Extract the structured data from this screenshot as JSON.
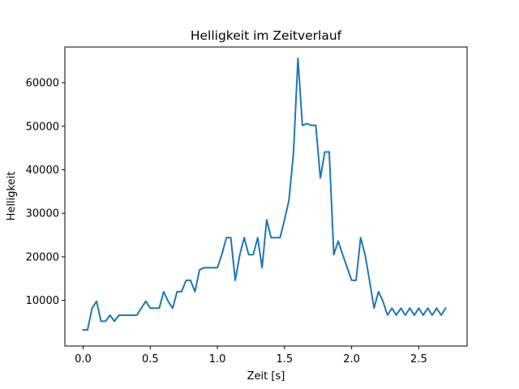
{
  "chart_data": {
    "type": "line",
    "title": "Helligkeit im Zeitverlauf",
    "xlabel": "Zeit [s]",
    "ylabel": "Helligkeit",
    "xlim": [
      -0.136,
      2.86
    ],
    "ylim": [
      -500,
      68200
    ],
    "grid": false,
    "legend": "none",
    "xticks": [
      0.0,
      0.5,
      1.0,
      1.5,
      2.0,
      2.5
    ],
    "xtick_labels": [
      "0.0",
      "0.5",
      "1.0",
      "1.5",
      "2.0",
      "2.5"
    ],
    "yticks": [
      10000,
      20000,
      30000,
      40000,
      50000,
      60000
    ],
    "ytick_labels": [
      "10000",
      "20000",
      "30000",
      "40000",
      "50000",
      "60000"
    ],
    "series": [
      {
        "color": "#1f77b4",
        "x": [
          0.0,
          0.033,
          0.067,
          0.1,
          0.133,
          0.167,
          0.2,
          0.233,
          0.267,
          0.3,
          0.333,
          0.367,
          0.4,
          0.433,
          0.467,
          0.5,
          0.533,
          0.567,
          0.6,
          0.633,
          0.667,
          0.7,
          0.733,
          0.767,
          0.8,
          0.833,
          0.867,
          0.9,
          0.933,
          0.967,
          1.0,
          1.033,
          1.067,
          1.1,
          1.133,
          1.167,
          1.2,
          1.233,
          1.267,
          1.3,
          1.333,
          1.367,
          1.4,
          1.433,
          1.467,
          1.5,
          1.533,
          1.567,
          1.6,
          1.633,
          1.667,
          1.7,
          1.733,
          1.767,
          1.8,
          1.833,
          1.867,
          1.9,
          1.933,
          1.967,
          2.0,
          2.033,
          2.067,
          2.1,
          2.133,
          2.167,
          2.2,
          2.233,
          2.267,
          2.3,
          2.333,
          2.367,
          2.4,
          2.433,
          2.467,
          2.5,
          2.533,
          2.567,
          2.6,
          2.633,
          2.667,
          2.7
        ],
        "y": [
          3200,
          3200,
          8200,
          9800,
          5200,
          5200,
          6600,
          5200,
          6600,
          6600,
          6600,
          6600,
          6600,
          8200,
          9800,
          8200,
          8200,
          8200,
          12000,
          9800,
          8200,
          12000,
          12000,
          14600,
          14600,
          12000,
          17000,
          17500,
          17500,
          17500,
          17500,
          20500,
          24400,
          24400,
          14600,
          20500,
          24400,
          20500,
          20500,
          24400,
          17500,
          28500,
          24400,
          24400,
          24400,
          28500,
          33000,
          44000,
          65600,
          50200,
          50600,
          50200,
          50200,
          38100,
          44100,
          44100,
          20500,
          23600,
          20500,
          17500,
          14600,
          14600,
          24400,
          20500,
          14600,
          8200,
          12000,
          9800,
          6600,
          8200,
          6600,
          8200,
          6600,
          8200,
          6600,
          8200,
          6600,
          8200,
          6600,
          8200,
          6600,
          8200
        ]
      }
    ]
  }
}
